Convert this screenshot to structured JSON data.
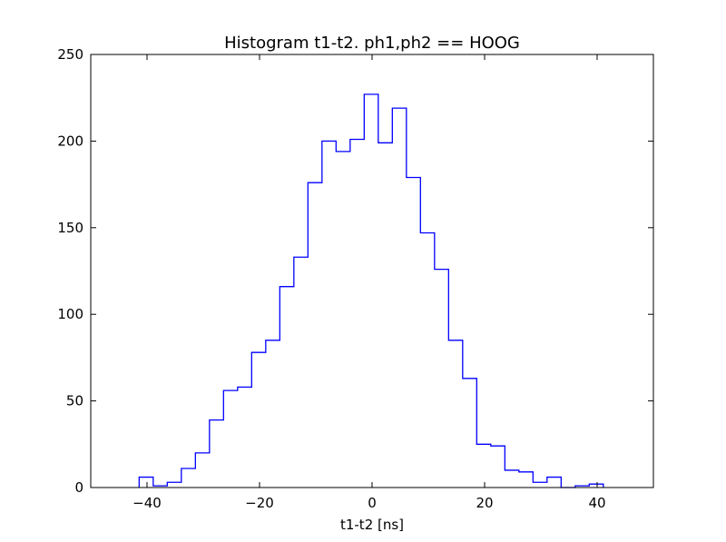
{
  "chart_data": {
    "type": "histogram",
    "title": "Histogram t1-t2.  ph1,ph2 == HOOG",
    "xlabel": "t1-t2 [ns]",
    "ylabel": "",
    "xlim": [
      -50,
      50
    ],
    "ylim": [
      0,
      250
    ],
    "xticks": [
      -40,
      -20,
      0,
      20,
      40
    ],
    "xtick_labels": [
      "−40",
      "−20",
      "0",
      "20",
      "40"
    ],
    "yticks": [
      0,
      50,
      100,
      150,
      200,
      250
    ],
    "ytick_labels": [
      "0",
      "50",
      "100",
      "150",
      "200",
      "250"
    ],
    "grid": false,
    "series_color": "#0000ff",
    "bins": {
      "edges": [
        -41.4,
        -38.9,
        -36.4,
        -33.9,
        -31.4,
        -28.9,
        -26.4,
        -23.9,
        -21.4,
        -18.9,
        -16.4,
        -13.9,
        -11.4,
        -8.9,
        -6.4,
        -3.9,
        -1.4,
        1.1,
        3.6,
        6.1,
        8.6,
        11.1,
        13.6,
        16.1,
        18.6,
        21.1,
        23.6,
        26.1,
        28.6,
        31.1,
        33.6,
        36.1,
        38.6,
        41.1
      ],
      "counts": [
        6,
        1,
        3,
        11,
        20,
        39,
        56,
        58,
        78,
        85,
        116,
        133,
        176,
        200,
        194,
        201,
        227,
        199,
        219,
        179,
        147,
        126,
        85,
        63,
        25,
        24,
        10,
        9,
        3,
        6,
        0,
        1,
        2
      ]
    }
  }
}
